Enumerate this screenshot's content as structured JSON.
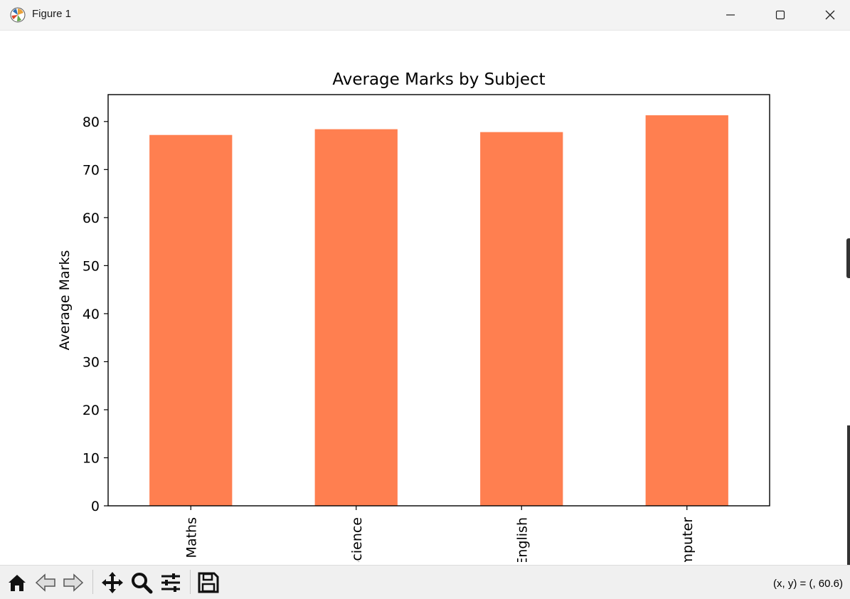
{
  "window": {
    "title": "Figure 1",
    "icons": {
      "app": "matplotlib-icon",
      "minimize": "minimize-icon",
      "maximize": "maximize-icon",
      "close": "close-icon"
    }
  },
  "toolbar": {
    "tools": [
      {
        "name": "home-icon"
      },
      {
        "name": "back-icon"
      },
      {
        "name": "forward-icon"
      },
      {
        "name": "pan-icon"
      },
      {
        "name": "zoom-icon"
      },
      {
        "name": "configure-subplots-icon"
      },
      {
        "name": "save-icon"
      }
    ],
    "coordinates": "(x, y) = (, 60.6)"
  },
  "chart_data": {
    "type": "bar",
    "title": "Average Marks by Subject",
    "xlabel": "",
    "ylabel": "Average Marks",
    "categories": [
      "Maths",
      "Science",
      "English",
      "Computer"
    ],
    "category_labels_visible": [
      "Maths",
      "cience",
      "nglish",
      "mputer"
    ],
    "values": [
      77.2,
      78.4,
      77.8,
      81.3
    ],
    "ylim": [
      0,
      85.6
    ],
    "yticks": [
      0,
      10,
      20,
      30,
      40,
      50,
      60,
      70,
      80
    ],
    "bar_color": "#ff7f50",
    "grid": false,
    "legend": "none"
  }
}
